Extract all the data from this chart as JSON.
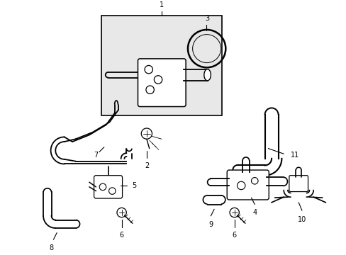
{
  "background_color": "#ffffff",
  "line_color": "#000000",
  "box_fill": "#e8e8e8",
  "fig_width": 4.89,
  "fig_height": 3.6,
  "dpi": 100
}
